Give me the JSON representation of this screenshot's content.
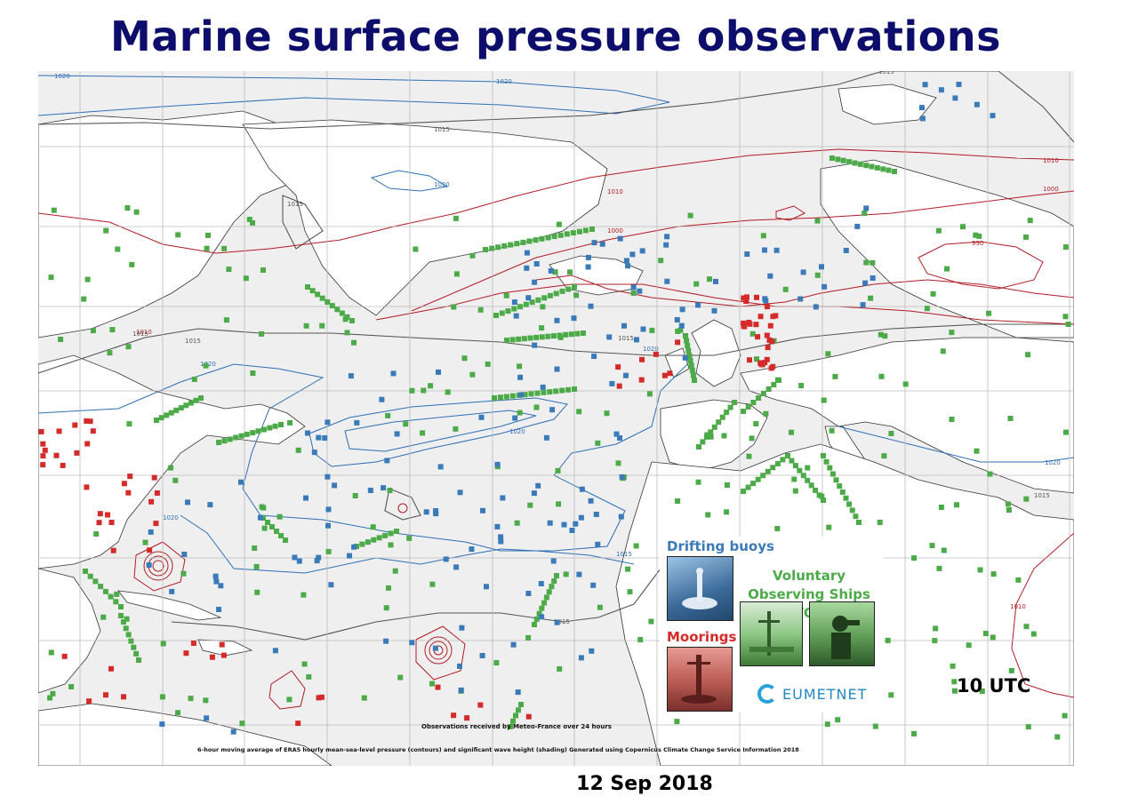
{
  "title": "Marine surface pressure observations",
  "date": "12 Sep 2018",
  "time_label": "10 UTC",
  "footnotes": {
    "received": "Observations received by Meteo-France over 24 hours",
    "source": "6-hour moving average of ERA5 hourly mean-sea-level pressure (contours) and significant wave height (shading) Generated using Copernicus Climate Change Service Information 2018"
  },
  "legend": {
    "drifting": "Drifting buoys",
    "vos": "Voluntary Observing Ships (VOS)",
    "moorings": "Moorings",
    "logo": "EUMETNET"
  },
  "contour_labels": [
    "1020",
    "1020",
    "1015",
    "1015",
    "1015",
    "1020",
    "1010",
    "1000",
    "990",
    "1010",
    "1000",
    "1015",
    "1020",
    "1010",
    "1015",
    "1020",
    "1020",
    "1015",
    "1020",
    "1020",
    "1015",
    "1015",
    "1010",
    "1015"
  ],
  "colors": {
    "title": "#0d0d6b",
    "drifting": "#3a7ab8",
    "vos": "#4cab48",
    "moorings": "#d42a2a",
    "contour_1020": "#2e6fb4",
    "contour_1015": "#555555",
    "contour_low": "#b01c24",
    "land": "#ffffff",
    "sea": "#efefef"
  }
}
